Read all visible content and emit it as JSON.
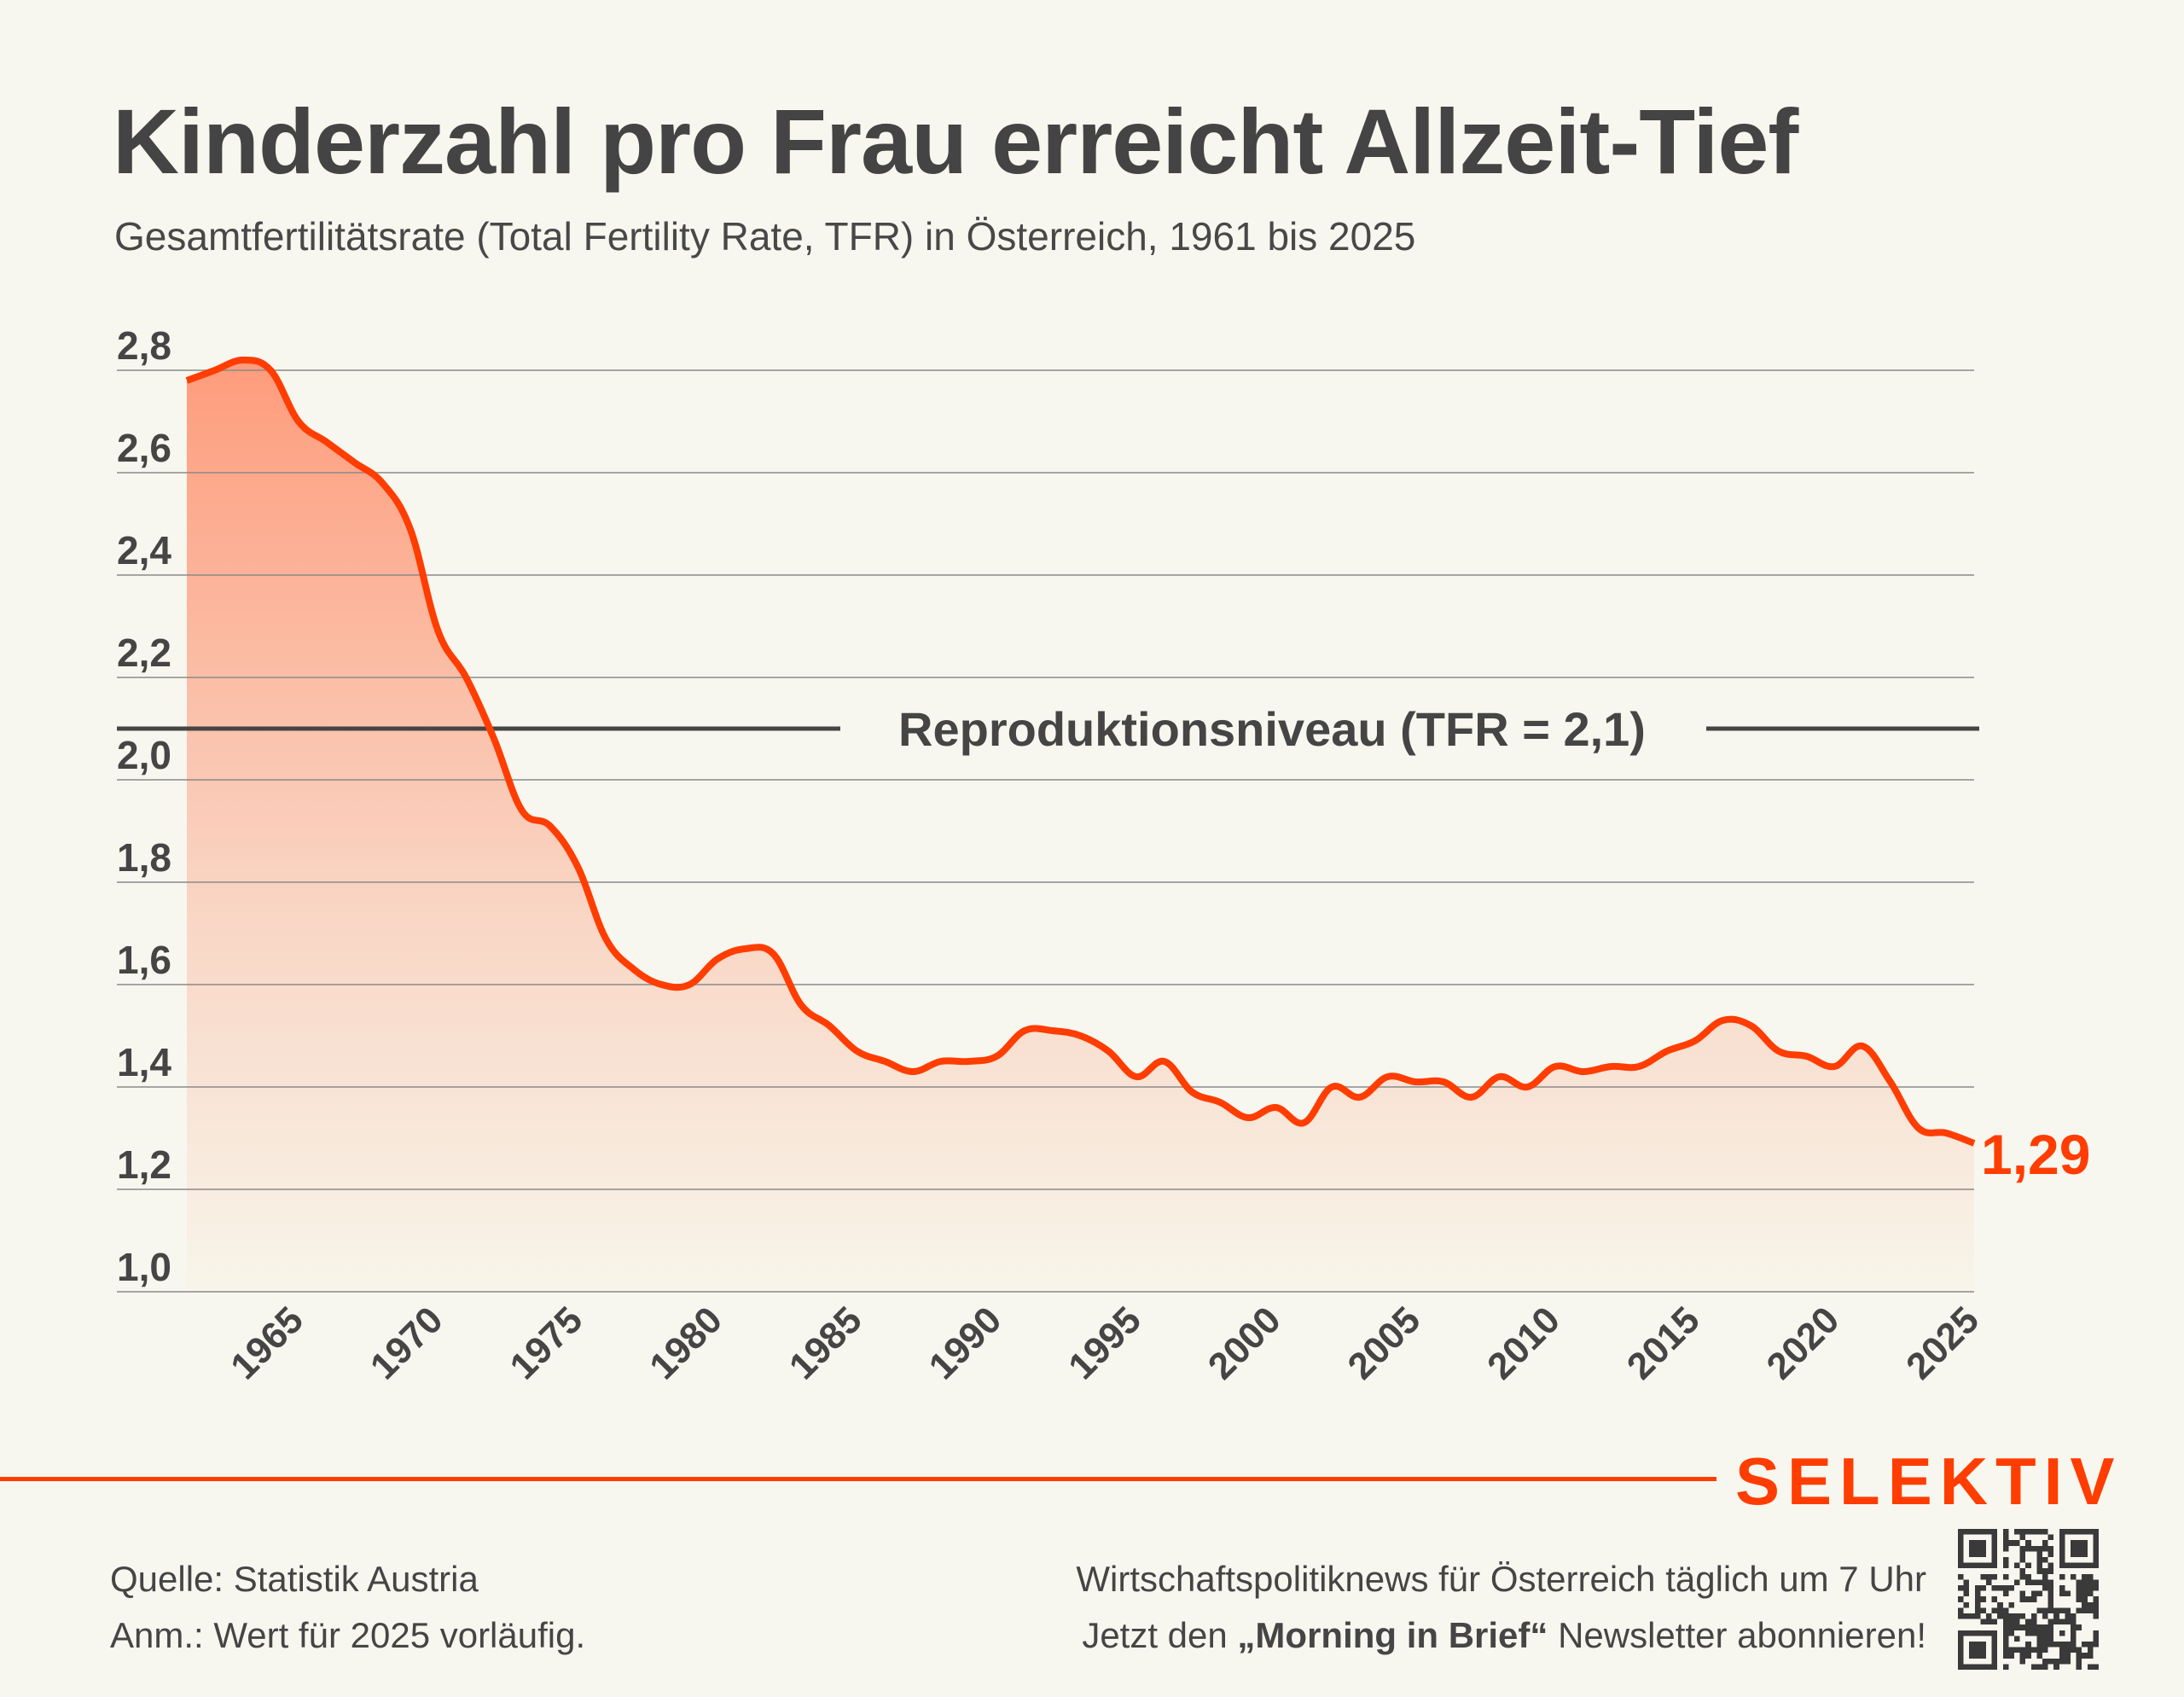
{
  "header": {
    "title": "Kinderzahl pro Frau erreicht Allzeit-Tief",
    "subtitle": "Gesamtfertilitätsrate (Total Fertility Rate, TFR) in Österreich, 1961 bis 2025"
  },
  "colors": {
    "accent": "#ff3d00",
    "text": "#454545",
    "background": "#f8f7ef",
    "area_top": "#fe9c7c",
    "area_bottom": "#f8f5ea",
    "gridline": "#8a8a8a",
    "reference_line": "#454545"
  },
  "chart_data": {
    "type": "area",
    "title": "Kinderzahl pro Frau erreicht Allzeit-Tief",
    "subtitle": "Gesamtfertilitätsrate (Total Fertility Rate, TFR) in Österreich, 1961 bis 2025",
    "xlabel": "",
    "ylabel": "",
    "xlim": [
      1961,
      2025
    ],
    "ylim": [
      1.0,
      2.8
    ],
    "grid": true,
    "x_ticks": [
      1965,
      1970,
      1975,
      1980,
      1985,
      1990,
      1995,
      2000,
      2005,
      2010,
      2015,
      2020,
      2025
    ],
    "x_tick_labels": [
      "1965",
      "1970",
      "1975",
      "1980",
      "1985",
      "1990",
      "1995",
      "2000",
      "2005",
      "2010",
      "2015",
      "2020",
      "2025"
    ],
    "y_ticks": [
      1.0,
      1.2,
      1.4,
      1.6,
      1.8,
      2.0,
      2.2,
      2.4,
      2.6,
      2.8
    ],
    "y_tick_labels": [
      "1,0",
      "1,2",
      "1,4",
      "1,6",
      "1,8",
      "2,0",
      "2,2",
      "2,4",
      "2,6",
      "2,8"
    ],
    "series": [
      {
        "name": "TFR Österreich",
        "x": [
          1961,
          1962,
          1963,
          1964,
          1965,
          1966,
          1967,
          1968,
          1969,
          1970,
          1971,
          1972,
          1973,
          1974,
          1975,
          1976,
          1977,
          1978,
          1979,
          1980,
          1981,
          1982,
          1983,
          1984,
          1985,
          1986,
          1987,
          1988,
          1989,
          1990,
          1991,
          1992,
          1993,
          1994,
          1995,
          1996,
          1997,
          1998,
          1999,
          2000,
          2001,
          2002,
          2003,
          2004,
          2005,
          2006,
          2007,
          2008,
          2009,
          2010,
          2011,
          2012,
          2013,
          2014,
          2015,
          2016,
          2017,
          2018,
          2019,
          2020,
          2021,
          2022,
          2023,
          2024,
          2025
        ],
        "values": [
          2.78,
          2.8,
          2.82,
          2.8,
          2.7,
          2.66,
          2.62,
          2.58,
          2.49,
          2.29,
          2.2,
          2.08,
          1.94,
          1.91,
          1.83,
          1.69,
          1.63,
          1.6,
          1.6,
          1.65,
          1.67,
          1.66,
          1.56,
          1.52,
          1.47,
          1.45,
          1.43,
          1.45,
          1.45,
          1.46,
          1.51,
          1.51,
          1.5,
          1.47,
          1.42,
          1.45,
          1.39,
          1.37,
          1.34,
          1.36,
          1.33,
          1.4,
          1.38,
          1.42,
          1.41,
          1.41,
          1.38,
          1.42,
          1.4,
          1.44,
          1.43,
          1.44,
          1.44,
          1.47,
          1.49,
          1.53,
          1.52,
          1.47,
          1.46,
          1.44,
          1.48,
          1.41,
          1.32,
          1.31,
          1.29
        ]
      }
    ],
    "reference_line": {
      "value": 2.1,
      "label": "Reproduktionsniveau (TFR = 2,1)"
    },
    "end_label": {
      "year": 2025,
      "text": "1,29"
    },
    "legend": "none"
  },
  "footer": {
    "source": "Quelle: Statistik Austria",
    "note": "Anm.: Wert für 2025 vorläufig.",
    "promo_line1": "Wirtschaftspolitiknews für Österreich täglich um 7 Uhr",
    "promo_line2_prefix": "Jetzt den ",
    "promo_line2_bold": "„Morning in Brief“",
    "promo_line2_suffix": " Newsletter abonnieren!",
    "brand": "SELEKTIV",
    "qr_icon": "qr-code-icon"
  }
}
